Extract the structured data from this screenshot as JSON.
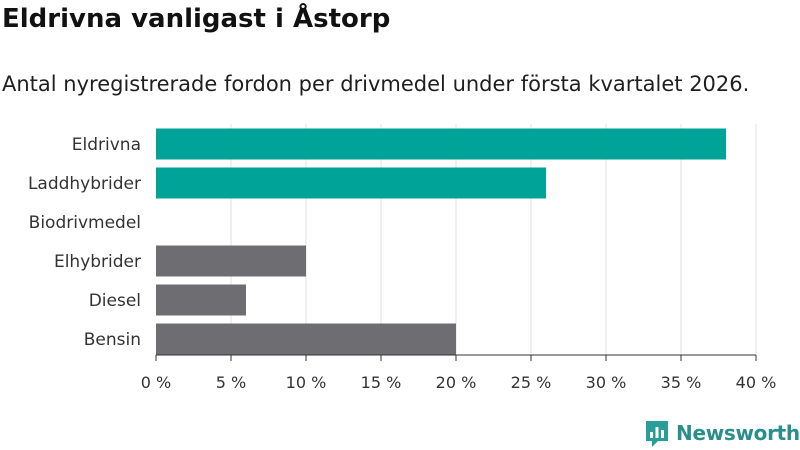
{
  "title": "Eldrivna vanligast i Åstorp",
  "subtitle": "Antal nyregistrerade fordon per drivmedel under första kvartalet 2026.",
  "brand": {
    "name": "Newsworthy",
    "color": "#2a9d99"
  },
  "colors": {
    "highlight": "#00a398",
    "other": "#6e6d72",
    "grid": "#e6e6e6",
    "axis": "#333333"
  },
  "chart_data": {
    "type": "bar",
    "orientation": "horizontal",
    "categories": [
      "Eldrivna",
      "Laddhybrider",
      "Biodrivmedel",
      "Elhybrider",
      "Diesel",
      "Bensin"
    ],
    "values": [
      38,
      26,
      0,
      10,
      6,
      20
    ],
    "highlight": [
      true,
      true,
      true,
      false,
      false,
      false
    ],
    "xlim": [
      0,
      40
    ],
    "xticks": [
      0,
      5,
      10,
      15,
      20,
      25,
      30,
      35,
      40
    ],
    "tick_labels": [
      "0 %",
      "5 %",
      "10 %",
      "15 %",
      "20 %",
      "25 %",
      "30 %",
      "35 %",
      "40 %"
    ],
    "unit": "%",
    "title": "Eldrivna vanligast i Åstorp",
    "xlabel": "",
    "ylabel": "",
    "grid": true,
    "legend": "none"
  }
}
